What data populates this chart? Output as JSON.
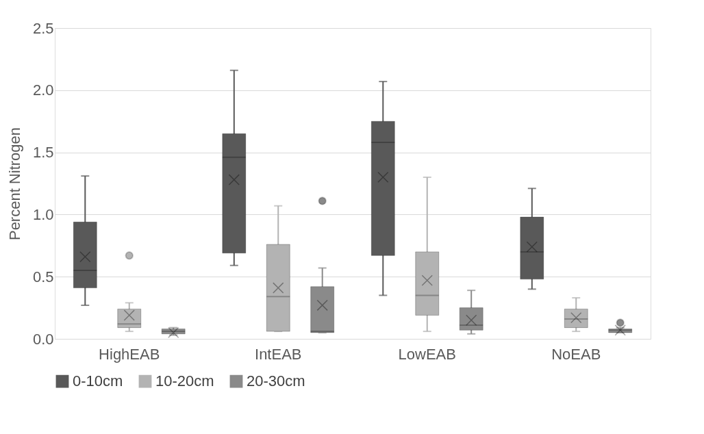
{
  "chart_data": {
    "type": "box",
    "ylabel": "Percent Nitrogen",
    "categories": [
      "HighEAB",
      "IntEAB",
      "LowEAB",
      "NoEAB"
    ],
    "ylim": [
      0,
      2.5
    ],
    "yticks": [
      {
        "value": 0,
        "label": "0.0"
      },
      0.5,
      {
        "value": 1,
        "label": "1.0"
      },
      1.5,
      {
        "value": 2,
        "label": "2.0"
      },
      2.5
    ],
    "grid": "y",
    "legend": "bottom",
    "marker": "cross",
    "series": [
      {
        "name": "0-10cm",
        "color": "#595959",
        "boxes": [
          {
            "low": 0.27,
            "q1": 0.41,
            "median": 0.55,
            "q3": 0.94,
            "high": 1.31,
            "mean": 0.66
          },
          {
            "low": 0.59,
            "q1": 0.69,
            "median": 1.46,
            "q3": 1.65,
            "high": 2.16,
            "mean": 1.28
          },
          {
            "low": 0.35,
            "q1": 0.67,
            "median": 1.58,
            "q3": 1.75,
            "high": 2.07,
            "mean": 1.3
          },
          {
            "low": 0.4,
            "q1": 0.48,
            "median": 0.7,
            "q3": 0.98,
            "high": 1.21,
            "mean": 0.74
          }
        ]
      },
      {
        "name": "10-20cm",
        "color": "#b3b3b3",
        "boxes": [
          {
            "low": 0.06,
            "q1": 0.09,
            "median": 0.12,
            "q3": 0.24,
            "high": 0.29,
            "mean": 0.19,
            "outliers": [
              0.67
            ]
          },
          {
            "low": 0.06,
            "q1": 0.06,
            "median": 0.34,
            "q3": 0.76,
            "high": 1.07,
            "mean": 0.41
          },
          {
            "low": 0.06,
            "q1": 0.19,
            "median": 0.35,
            "q3": 0.7,
            "high": 1.3,
            "mean": 0.47
          },
          {
            "low": 0.06,
            "q1": 0.09,
            "median": 0.16,
            "q3": 0.24,
            "high": 0.33,
            "mean": 0.17
          }
        ]
      },
      {
        "name": "20-30cm",
        "color": "#8a8a8a",
        "boxes": [
          {
            "low": 0.03,
            "q1": 0.04,
            "median": 0.06,
            "q3": 0.08,
            "high": 0.09,
            "mean": 0.05
          },
          {
            "low": 0.05,
            "q1": 0.05,
            "median": 0.06,
            "q3": 0.42,
            "high": 0.57,
            "mean": 0.27,
            "outliers": [
              1.11
            ]
          },
          {
            "low": 0.04,
            "q1": 0.07,
            "median": 0.11,
            "q3": 0.25,
            "high": 0.39,
            "mean": 0.15
          },
          {
            "low": 0.05,
            "q1": 0.05,
            "median": 0.07,
            "q3": 0.08,
            "high": 0.09,
            "mean": 0.07,
            "outliers": [
              0.13
            ]
          }
        ]
      }
    ]
  }
}
